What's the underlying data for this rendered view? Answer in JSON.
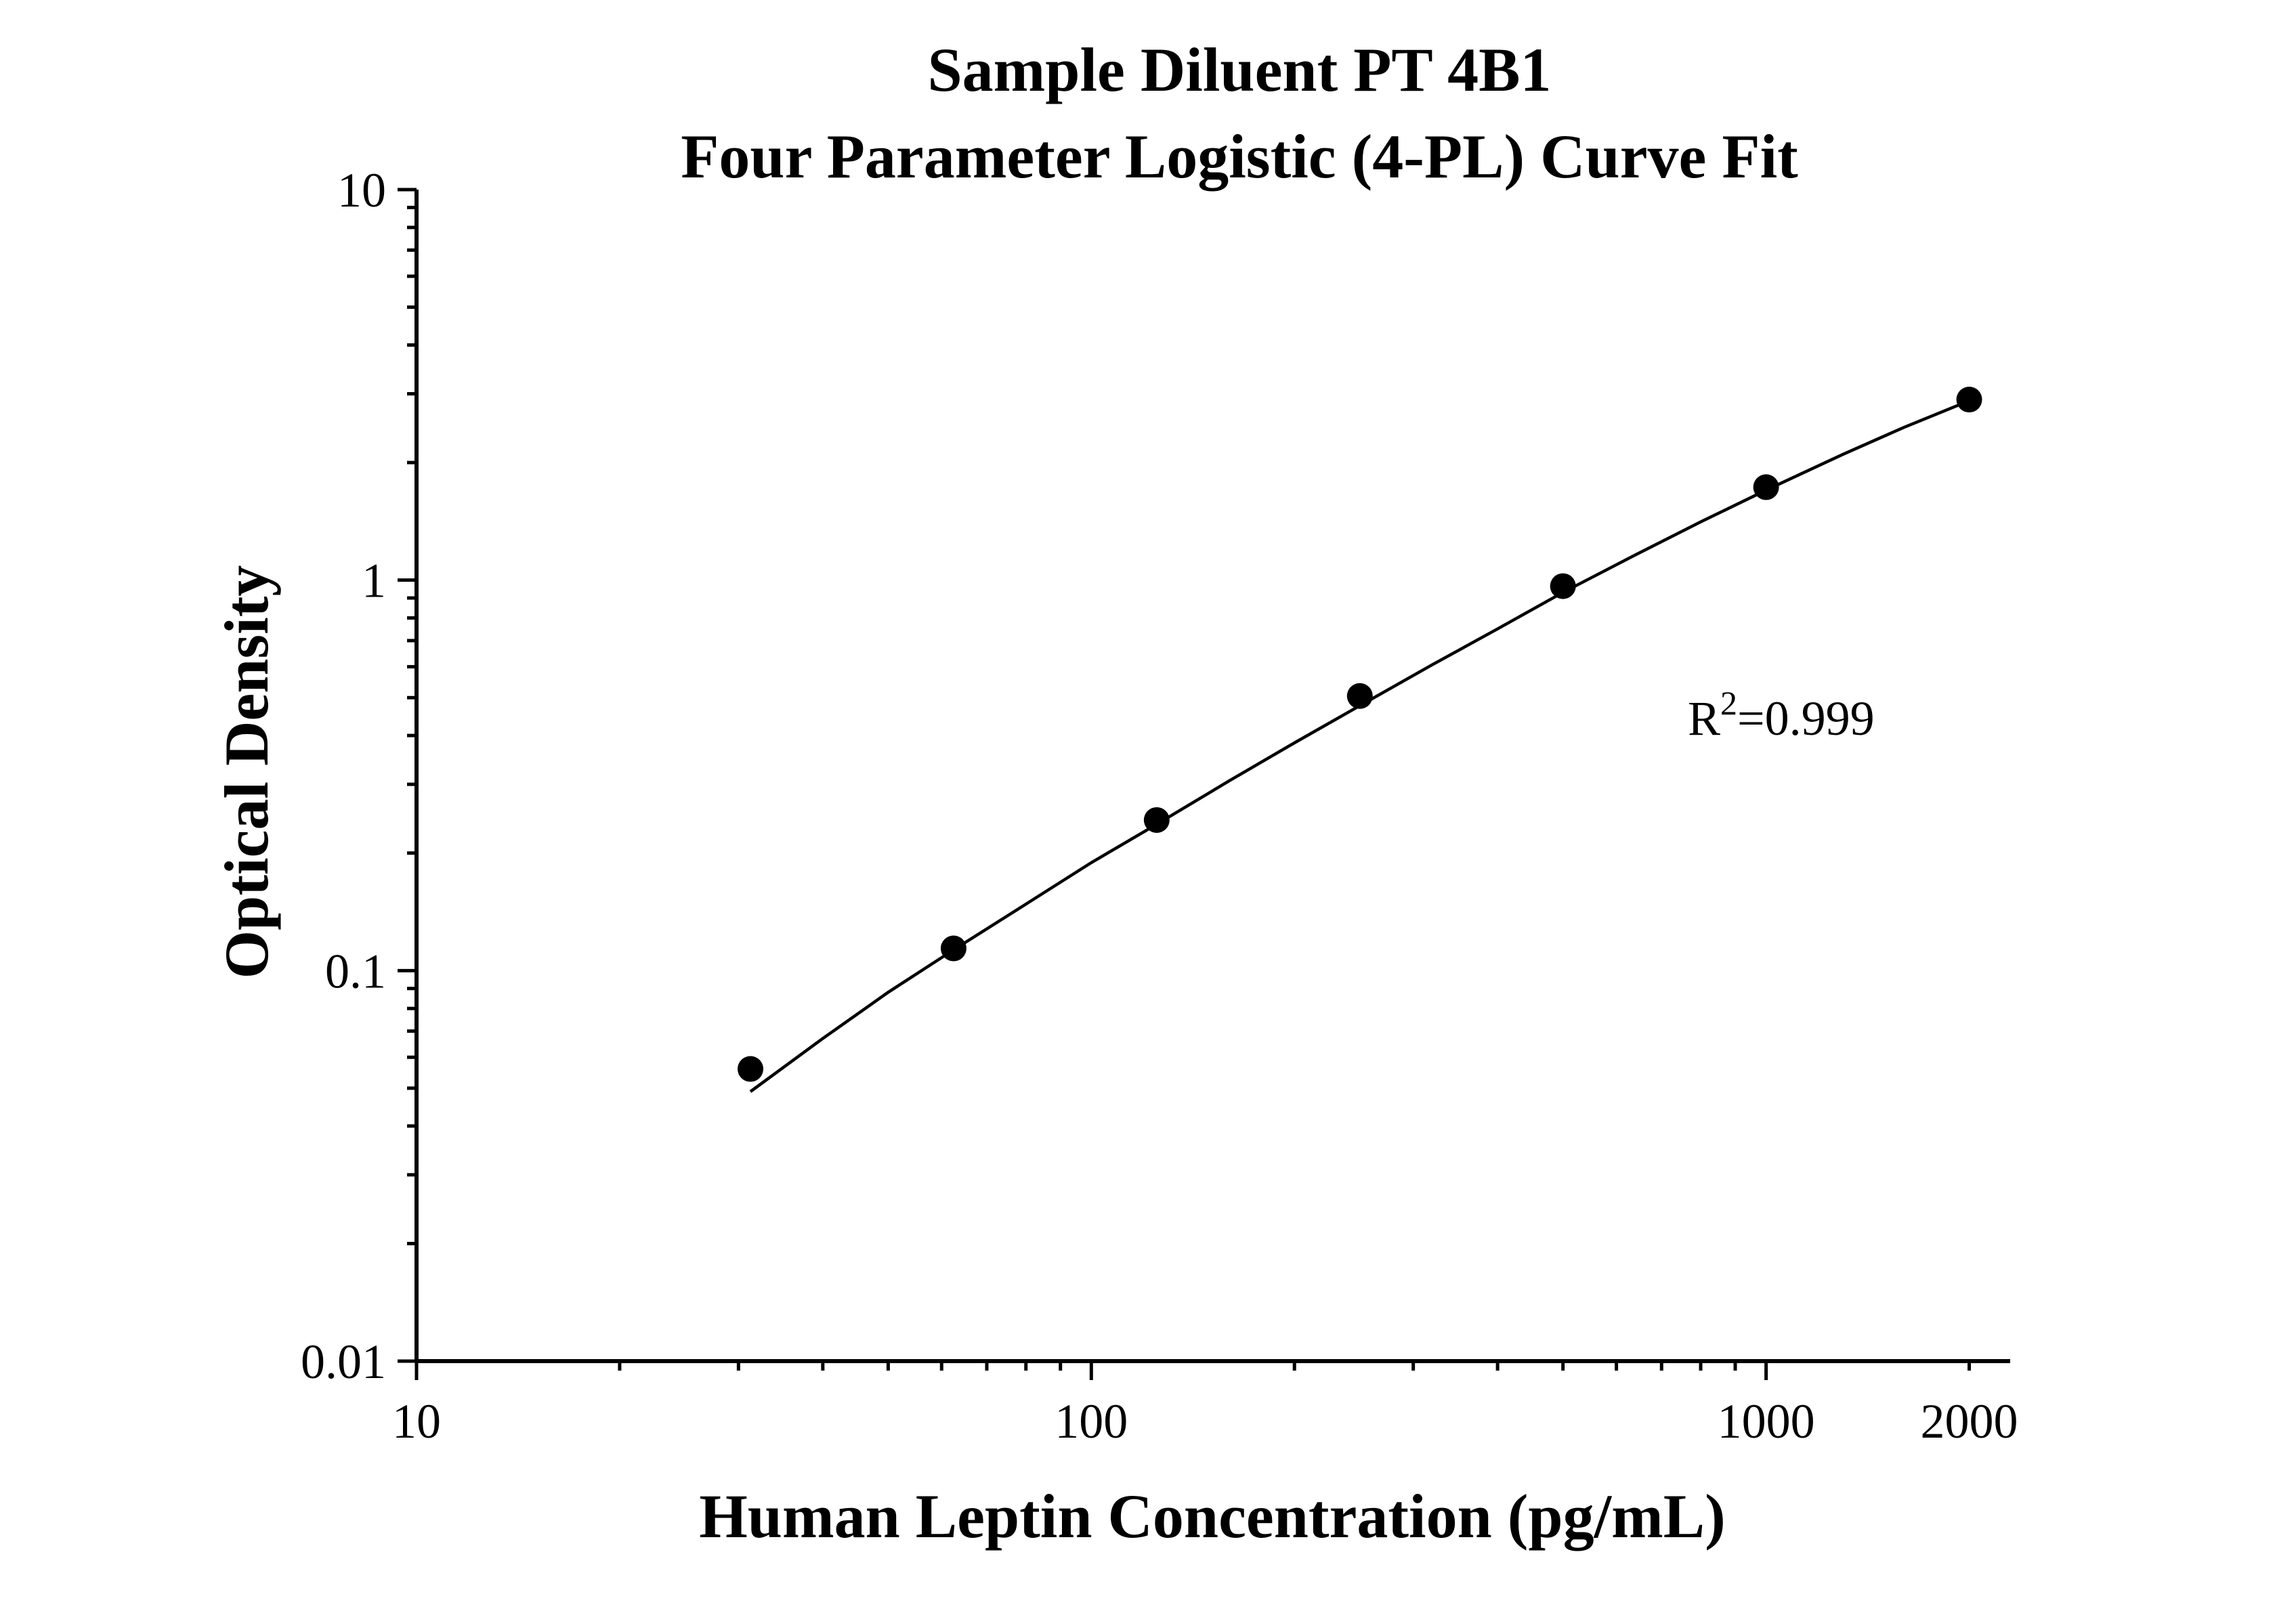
{
  "chart_data": {
    "type": "scatter",
    "title": "Sample Diluent PT 4B1",
    "subtitle": "Four Parameter Logistic (4-PL) Curve Fit",
    "xlabel": "Human Leptin Concentration (pg/mL)",
    "ylabel": "Optical Density",
    "x_scale": "log",
    "y_scale": "log",
    "xlim": [
      10,
      2300
    ],
    "ylim": [
      0.01,
      10
    ],
    "x_ticks": [
      "10",
      "100",
      "1000",
      "2000"
    ],
    "x_tick_values": [
      10,
      100,
      1000,
      2000
    ],
    "y_ticks": [
      "0.01",
      "0.1",
      "1",
      "10"
    ],
    "y_tick_values": [
      0.01,
      0.1,
      1,
      10
    ],
    "grid": false,
    "legend": "none",
    "annotation": {
      "text": "R",
      "superscript": "2",
      "suffix": "=0.999"
    },
    "series": [
      {
        "x": [
          31.25,
          62.5,
          125,
          250,
          500,
          1000,
          2000
        ],
        "y": [
          0.056,
          0.114,
          0.243,
          0.505,
          0.965,
          1.73,
          2.9
        ],
        "marker": "circle",
        "color": "#000000"
      }
    ],
    "fit_curve": {
      "x": [
        31.25,
        40,
        50,
        62.5,
        80,
        100,
        125,
        160,
        200,
        250,
        320,
        400,
        500,
        640,
        800,
        1000,
        1300,
        1600,
        2000
      ],
      "y": [
        0.049,
        0.067,
        0.088,
        0.113,
        0.148,
        0.189,
        0.237,
        0.306,
        0.383,
        0.477,
        0.607,
        0.75,
        0.93,
        1.16,
        1.41,
        1.7,
        2.1,
        2.46,
        2.88
      ],
      "color": "#000000"
    }
  }
}
